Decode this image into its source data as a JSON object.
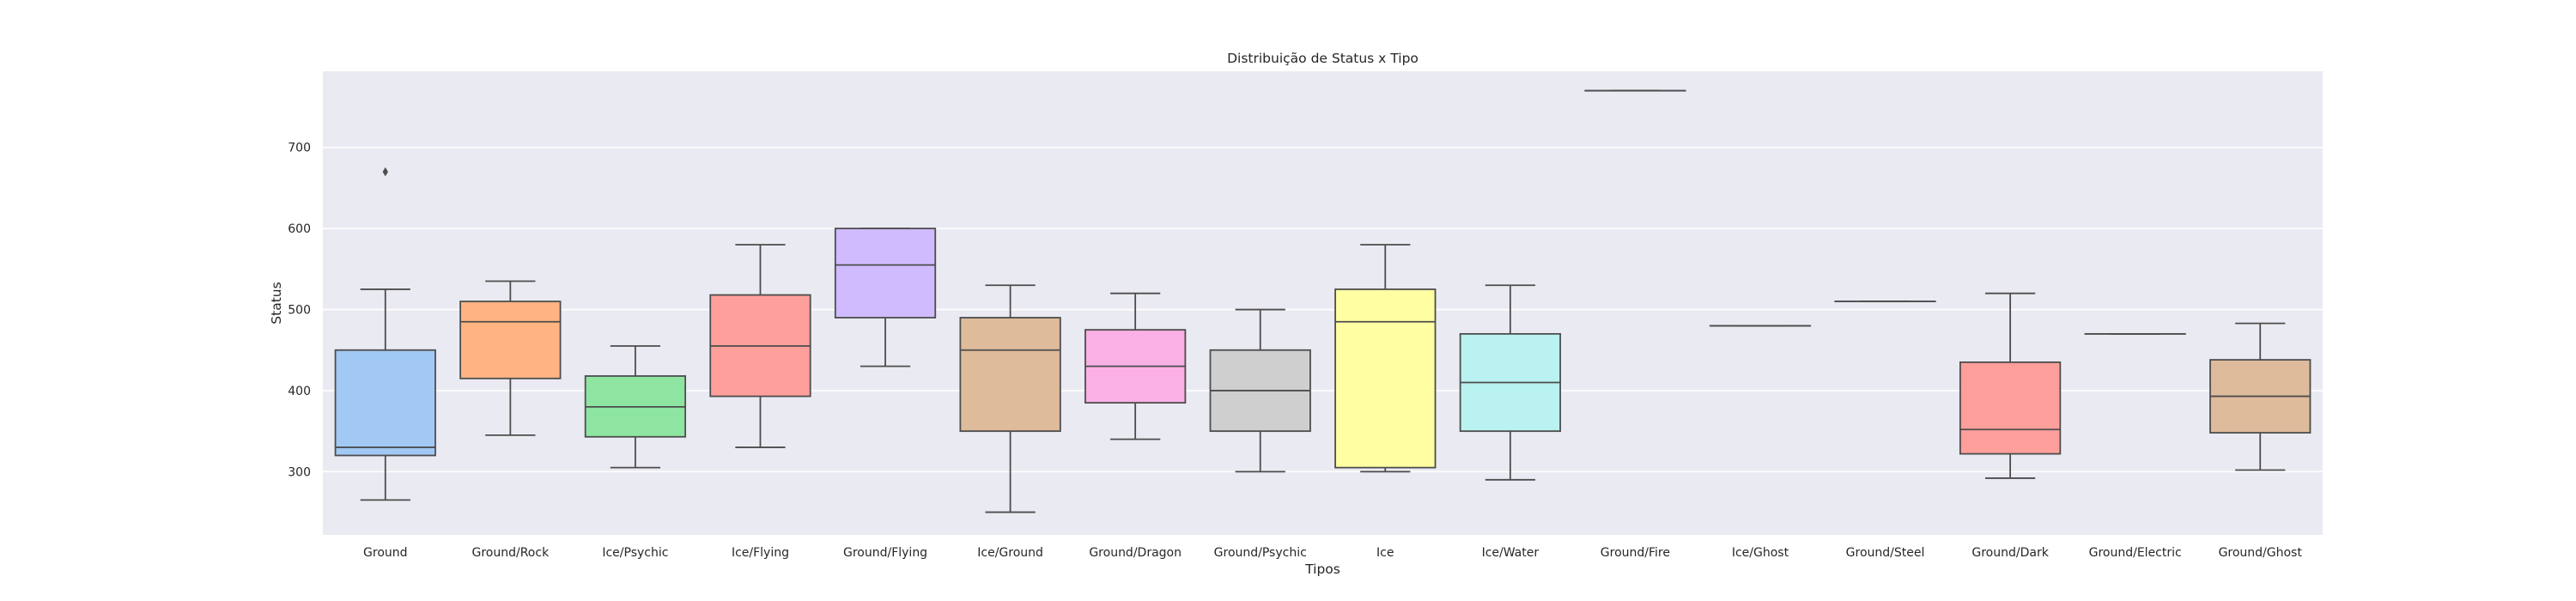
{
  "chart_data": {
    "type": "box",
    "title": "Distribuição de Status x Tipo",
    "xlabel": "Tipos",
    "ylabel": "Status",
    "ylim": [
      222,
      794
    ],
    "yticks": [
      300,
      400,
      500,
      600,
      700
    ],
    "grid": true,
    "categories": [
      "Ground",
      "Ground/Rock",
      "Ice/Psychic",
      "Ice/Flying",
      "Ground/Flying",
      "Ice/Ground",
      "Ground/Dragon",
      "Ground/Psychic",
      "Ice",
      "Ice/Water",
      "Ground/Fire",
      "Ice/Ghost",
      "Ground/Steel",
      "Ground/Dark",
      "Ground/Electric",
      "Ground/Ghost"
    ],
    "boxes": [
      {
        "whislo": 265,
        "q1": 320,
        "med": 330,
        "q3": 450,
        "whishi": 525,
        "fliers": [
          670
        ],
        "color": "#a1c9f4"
      },
      {
        "whislo": 345,
        "q1": 415,
        "med": 485,
        "q3": 510,
        "whishi": 535,
        "fliers": [],
        "color": "#ffb482"
      },
      {
        "whislo": 305,
        "q1": 343,
        "med": 380,
        "q3": 418,
        "whishi": 455,
        "fliers": [],
        "color": "#8de5a1"
      },
      {
        "whislo": 330,
        "q1": 393,
        "med": 455,
        "q3": 518,
        "whishi": 580,
        "fliers": [],
        "color": "#ff9f9b"
      },
      {
        "whislo": 430,
        "q1": 490,
        "med": 555,
        "q3": 600,
        "whishi": 600,
        "fliers": [],
        "color": "#d0bbff"
      },
      {
        "whislo": 250,
        "q1": 350,
        "med": 450,
        "q3": 490,
        "whishi": 530,
        "fliers": [],
        "color": "#debb9b"
      },
      {
        "whislo": 340,
        "q1": 385,
        "med": 430,
        "q3": 475,
        "whishi": 520,
        "fliers": [],
        "color": "#fab0e4"
      },
      {
        "whislo": 300,
        "q1": 350,
        "med": 400,
        "q3": 450,
        "whishi": 500,
        "fliers": [],
        "color": "#cfcfcf"
      },
      {
        "whislo": 300,
        "q1": 305,
        "med": 485,
        "q3": 525,
        "whishi": 580,
        "fliers": [],
        "color": "#fffea3"
      },
      {
        "whislo": 290,
        "q1": 350,
        "med": 410,
        "q3": 470,
        "whishi": 530,
        "fliers": [],
        "color": "#b9f2f0"
      },
      {
        "whislo": 770,
        "q1": 770,
        "med": 770,
        "q3": 770,
        "whishi": 770,
        "fliers": [],
        "color": "#a1c9f4"
      },
      {
        "whislo": 480,
        "q1": 480,
        "med": 480,
        "q3": 480,
        "whishi": 480,
        "fliers": [],
        "color": "#ffb482"
      },
      {
        "whislo": 510,
        "q1": 510,
        "med": 510,
        "q3": 510,
        "whishi": 510,
        "fliers": [],
        "color": "#8de5a1"
      },
      {
        "whislo": 292,
        "q1": 322,
        "med": 352,
        "q3": 435,
        "whishi": 520,
        "fliers": [],
        "color": "#ff9f9b"
      },
      {
        "whislo": 470,
        "q1": 470,
        "med": 470,
        "q3": 470,
        "whishi": 470,
        "fliers": [],
        "color": "#d0bbff"
      },
      {
        "whislo": 302,
        "q1": 348,
        "med": 393,
        "q3": 438,
        "whishi": 483,
        "fliers": [],
        "color": "#debb9b"
      }
    ],
    "colors": {
      "plot_background": "#eaeaf2",
      "grid": "#ffffff",
      "line": "#4d4d4d",
      "text": "#262626"
    }
  }
}
